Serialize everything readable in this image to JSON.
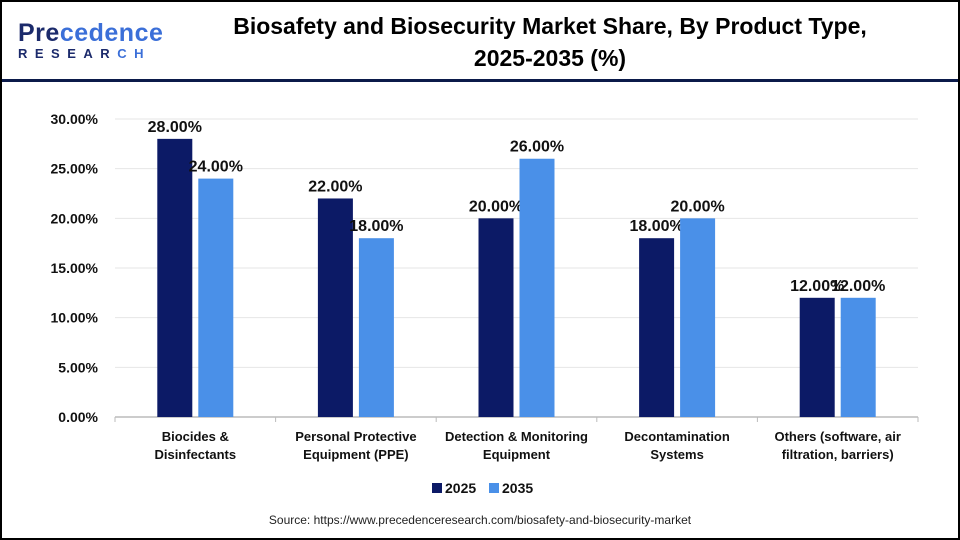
{
  "logo": {
    "brand": "Precedence",
    "sub": "RESEARCH"
  },
  "title_line1": "Biosafety and Biosecurity Market Share, By Product Type,",
  "title_line2": "2025-2035 (%)",
  "source": "Source: https://www.precedenceresearch.com/biosafety-and-biosecurity-market",
  "chart_data": {
    "type": "bar",
    "title": "Biosafety and Biosecurity Market Share, By Product Type, 2025-2035 (%)",
    "categories": [
      [
        "Biocides &",
        "Disinfectants"
      ],
      [
        "Personal Protective",
        "Equipment (PPE)"
      ],
      [
        "Detection & Monitoring",
        "Equipment"
      ],
      [
        "Decontamination",
        "Systems"
      ],
      [
        "Others (software, air",
        "filtration, barriers)"
      ]
    ],
    "series": [
      {
        "name": "2025",
        "color": "#0c1a66",
        "values": [
          28,
          22,
          20,
          18,
          12
        ]
      },
      {
        "name": "2035",
        "color": "#4a90e8",
        "values": [
          24,
          18,
          26,
          20,
          12
        ]
      }
    ],
    "yticks": [
      "0.00%",
      "5.00%",
      "10.00%",
      "15.00%",
      "20.00%",
      "25.00%",
      "30.00%"
    ],
    "ylim": [
      0,
      30
    ],
    "grid": true,
    "legend": "bottom",
    "data_label_format": "%.2f%"
  }
}
